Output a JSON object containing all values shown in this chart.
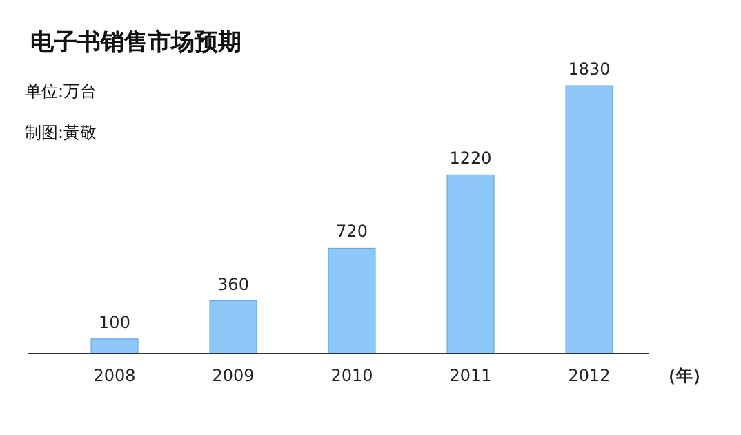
{
  "chart_data": {
    "type": "bar",
    "title": "电子书销售市场预期",
    "annotations": [
      "单位:万台",
      "制图:黃敬"
    ],
    "categories": [
      "2008",
      "2009",
      "2010",
      "2011",
      "2012"
    ],
    "xlabel": "（年）",
    "values": [
      100,
      360,
      720,
      1220,
      1830
    ],
    "color": "#8ec8f8",
    "data_labels": true
  }
}
